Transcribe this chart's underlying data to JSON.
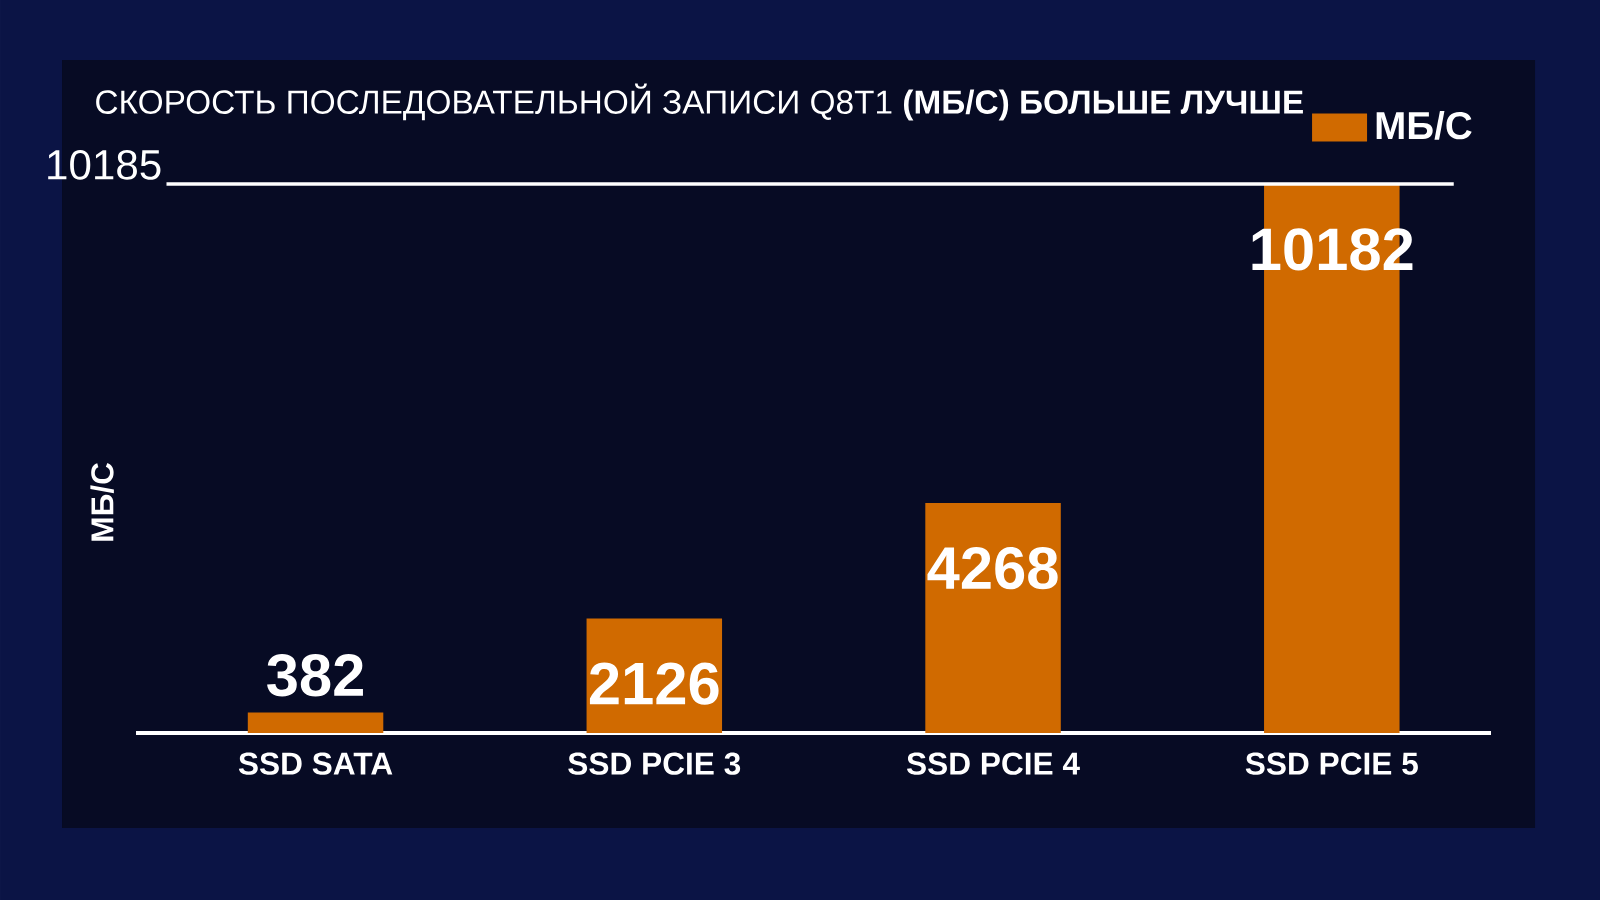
{
  "chart_data": {
    "type": "bar",
    "title": "СКОРОСТЬ ПОСЛЕДОВАТЕЛЬНОЙ ЗАПИСИ Q8T1 **(МБ/С) БОЛЬШЕ ЛУЧШЕ**",
    "ylabel": "МБ/С",
    "categories": [
      "SSD SATA",
      "SSD PCIE 3",
      "SSD PCIE 4",
      "SSD PCIE 5"
    ],
    "series": [
      {
        "name": "МБ/С",
        "color": "#d06a00",
        "values": [
          382,
          2126,
          4268,
          10182
        ]
      }
    ],
    "ylim": [
      0,
      10185
    ],
    "ref_lines": [
      {
        "axis": "y",
        "value": 10185,
        "label": "10185",
        "color": "#ffffff"
      }
    ],
    "data_labels": true,
    "legend": "top right"
  }
}
